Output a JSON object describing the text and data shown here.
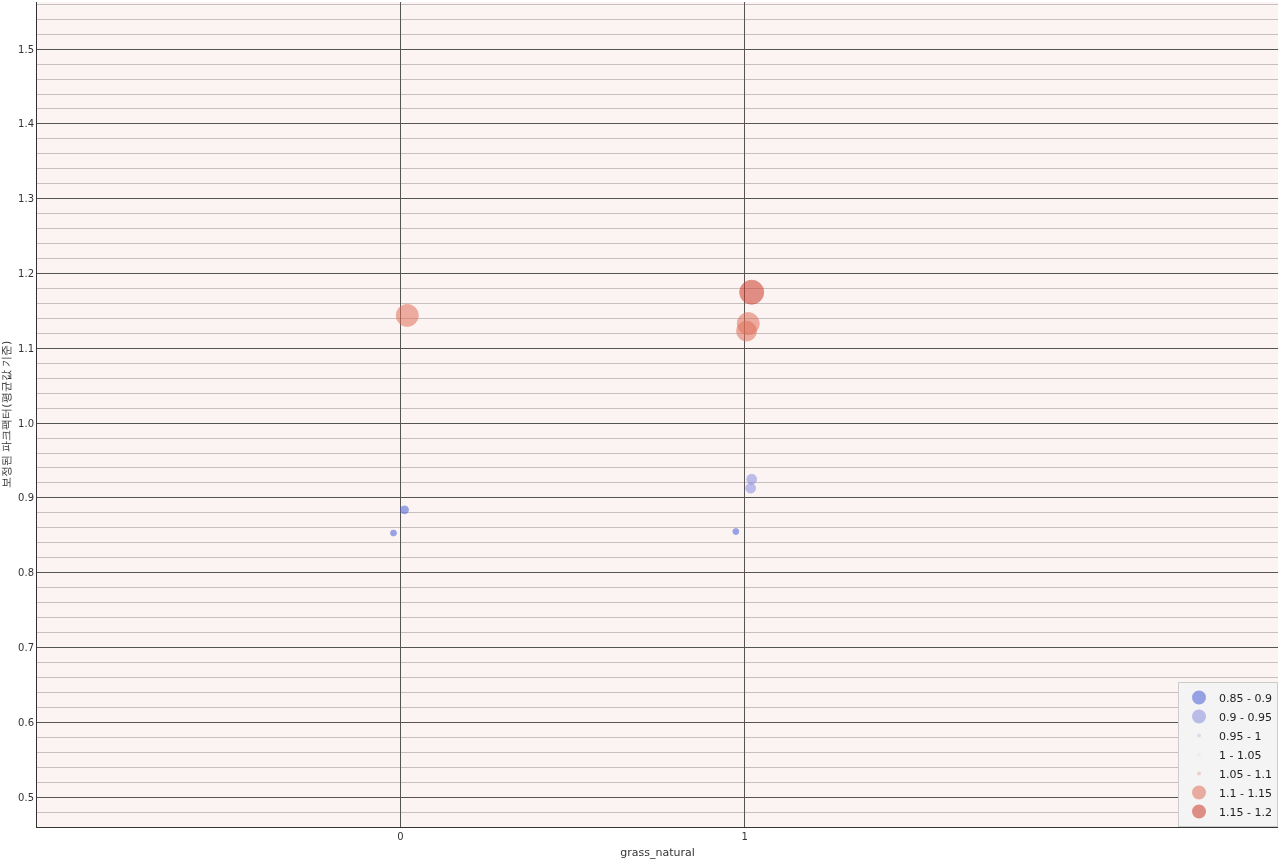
{
  "chart_data": {
    "type": "bubble",
    "xlabel": "grass_natural",
    "ylabel": "보정된 파크팩터(평균값 기준)",
    "xlim": [
      -1.055,
      2.548
    ],
    "xticks": [
      0,
      1
    ],
    "ylim": [
      0.46,
      1.563
    ],
    "yticks": [
      0.5,
      0.6,
      0.7,
      0.8,
      0.9,
      {
        "value": 1,
        "label": "1.0"
      },
      1.1,
      1.2,
      1.3,
      1.4,
      1.5
    ],
    "grid": true,
    "legend": "bottom right",
    "marker": "circle",
    "series": [
      {
        "name": "0.85 - 0.9",
        "color": "#4a5fd8",
        "x": [
          0.012,
          -0.02,
          0.974
        ],
        "values": [
          0.884,
          0.853,
          0.855
        ],
        "sizes": [
          0.11,
          0.06,
          0.06
        ]
      },
      {
        "name": "0.9 - 0.95",
        "color": "#8c8fe0",
        "x": [
          1.02,
          1.017
        ],
        "values": [
          0.925,
          0.913
        ],
        "sizes": [
          0.17,
          0.17
        ]
      },
      {
        "name": "0.95 - 1",
        "color": "#c4c6ec"
      },
      {
        "name": "1 - 1.05",
        "color": "#e8e8ec"
      },
      {
        "name": "1.05 - 1.1",
        "color": "#eeb3a6"
      },
      {
        "name": "1.1 - 1.15",
        "color": "#e0705a",
        "x": [
          0.02,
          1.01,
          1.005
        ],
        "values": [
          1.144,
          1.133,
          1.123
        ],
        "sizes": [
          0.84,
          0.84,
          0.69
        ]
      },
      {
        "name": "1.15 - 1.2",
        "color": "#cc3a2a",
        "x": [
          1.02
        ],
        "values": [
          1.175
        ],
        "sizes": [
          1
        ]
      }
    ]
  }
}
